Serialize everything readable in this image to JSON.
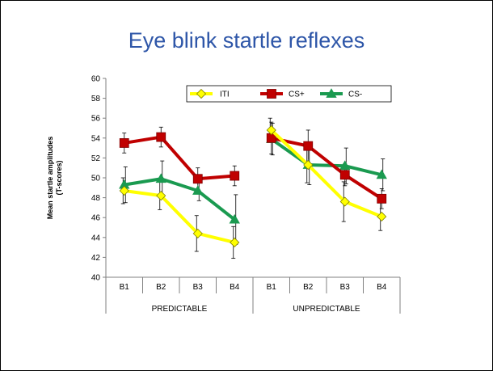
{
  "slide": {
    "title": "Eye blink startle reflexes"
  },
  "chart_data": {
    "type": "line",
    "title": "",
    "ylabel": [
      "Mean startle amplitudes",
      "(T-scores)"
    ],
    "xlabel": "",
    "ylim": [
      40,
      60
    ],
    "yticks": [
      40,
      42,
      44,
      46,
      48,
      50,
      52,
      54,
      56,
      58,
      60
    ],
    "groups": [
      {
        "name": "PREDICTABLE",
        "categories": [
          "B1",
          "B2",
          "B3",
          "B4"
        ]
      },
      {
        "name": "UNPREDICTABLE",
        "categories": [
          "B1",
          "B2",
          "B3",
          "B4"
        ]
      }
    ],
    "legend_position": "top",
    "series": [
      {
        "name": "ITI",
        "color": "#ffff00",
        "marker": "diamond",
        "values": [
          [
            48.7,
            48.2,
            44.4,
            43.5
          ],
          [
            54.8,
            51.3,
            47.6,
            46.1
          ]
        ],
        "errors": [
          [
            1.3,
            1.4,
            1.8,
            1.6
          ],
          [
            1.2,
            1.8,
            2.0,
            1.4
          ]
        ]
      },
      {
        "name": "CS+",
        "color": "#c00000",
        "marker": "square",
        "values": [
          [
            53.5,
            54.1,
            49.9,
            50.2
          ],
          [
            54.0,
            53.2,
            50.3,
            47.9
          ]
        ],
        "errors": [
          [
            1.0,
            1.0,
            1.1,
            1.0
          ],
          [
            1.6,
            1.6,
            1.1,
            1.0
          ]
        ]
      },
      {
        "name": "CS-",
        "color": "#1a9a50",
        "marker": "triangle",
        "values": [
          [
            49.3,
            49.9,
            48.7,
            45.8
          ],
          [
            53.9,
            51.3,
            51.2,
            50.3
          ]
        ],
        "errors": [
          [
            1.8,
            1.8,
            1.0,
            2.5
          ],
          [
            1.6,
            2.0,
            1.8,
            1.6
          ]
        ]
      }
    ]
  }
}
